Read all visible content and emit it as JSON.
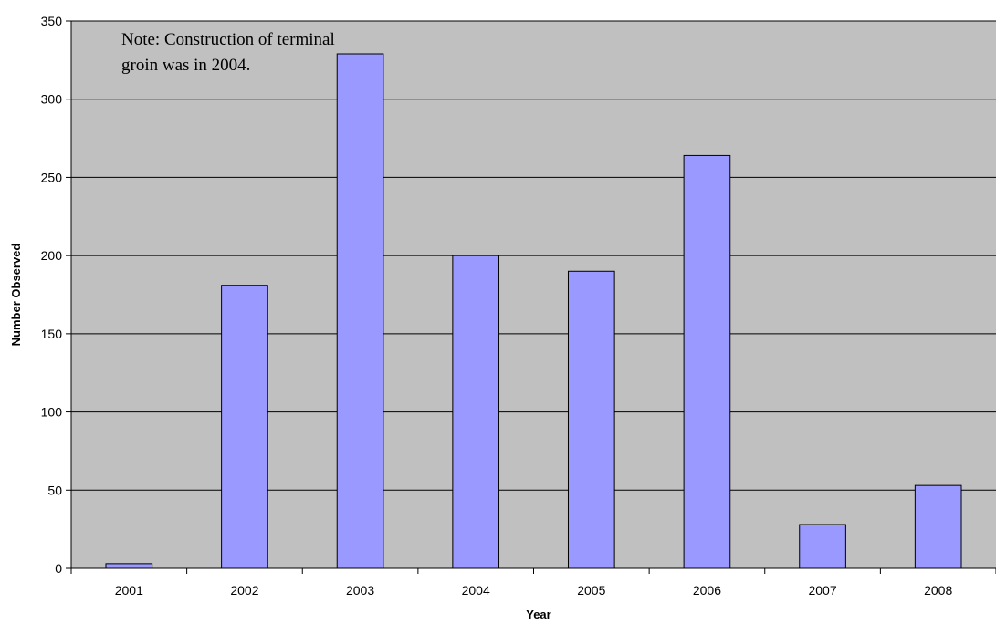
{
  "chart_data": {
    "type": "bar",
    "title": "",
    "xlabel": "Year",
    "ylabel": "Number Observed",
    "categories": [
      "2001",
      "2002",
      "2003",
      "2004",
      "2005",
      "2006",
      "2007",
      "2008"
    ],
    "values": [
      3,
      181,
      329,
      200,
      190,
      264,
      28,
      53
    ],
    "ylim": [
      0,
      350
    ],
    "yticks": [
      "0",
      "50",
      "100",
      "150",
      "200",
      "250",
      "300",
      "350"
    ],
    "grid": true,
    "legend": "none",
    "annotation_lines": [
      "Note: Construction of terminal",
      "groin was in 2004."
    ],
    "colors": {
      "bar_fill": "#9999ff",
      "bar_stroke": "#000000",
      "plot_background": "#c0c0c0",
      "gridline": "#000000"
    }
  }
}
